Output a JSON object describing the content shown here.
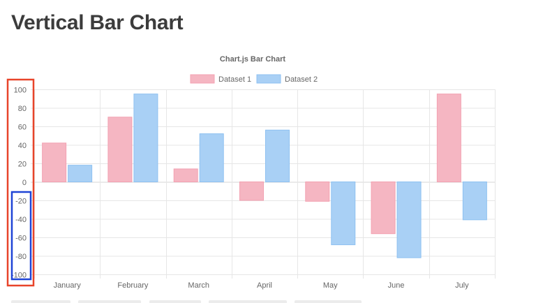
{
  "page": {
    "title": "Vertical Bar Chart"
  },
  "chart_data": {
    "type": "bar",
    "title": "Chart.js Bar Chart",
    "categories": [
      "January",
      "February",
      "March",
      "April",
      "May",
      "June",
      "July"
    ],
    "series": [
      {
        "name": "Dataset 1",
        "values": [
          42,
          70,
          14,
          -20,
          -21,
          -56,
          95
        ]
      },
      {
        "name": "Dataset 2",
        "values": [
          18,
          95,
          52,
          56,
          -68,
          -82,
          -41
        ]
      }
    ],
    "ylim": [
      -100,
      100
    ],
    "yticks": [
      100,
      80,
      60,
      40,
      20,
      0,
      -20,
      -40,
      -60,
      -80,
      -100
    ],
    "xlabel": "",
    "ylabel": "",
    "grid": true,
    "legend_position": "top",
    "colors": {
      "dataset1_fill": "#f5b6c2",
      "dataset1_border": "#f3a1b1",
      "dataset2_fill": "#a9d0f5",
      "dataset2_border": "#8ec1f1",
      "grid": "#e6e6e6",
      "highlight_all_ticks": "#e8442a",
      "highlight_negative_ticks": "#1f44d6"
    }
  }
}
